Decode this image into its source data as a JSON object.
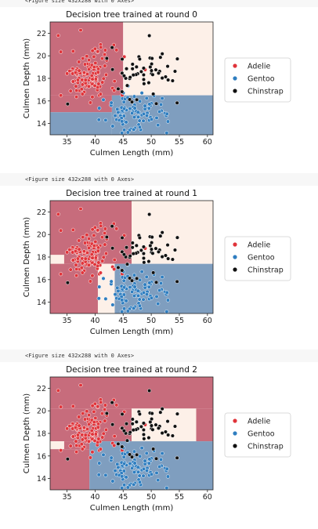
{
  "figure_caption": "<Figure size 432x288 with 0 Axes>",
  "colors": {
    "adelie": "#e0343a",
    "gentoo": "#2f7ec0",
    "chinstrap": "#111111",
    "region_adelie": "#c76c7c",
    "region_gentoo": "#7f9ebf",
    "region_chinstrap": "#fdf0e8"
  },
  "chart_data": [
    {
      "type": "scatter",
      "title": "Decision tree trained at round 0",
      "xlabel": "Culmen Length (mm)",
      "ylabel": "Culmen Depth (mm)",
      "xlim": [
        32,
        61
      ],
      "ylim": [
        13,
        23
      ],
      "xticks": [
        35,
        40,
        45,
        50,
        55,
        60
      ],
      "yticks": [
        14,
        16,
        18,
        20,
        22
      ],
      "legend": {
        "placement": "right",
        "entries": [
          "Adelie",
          "Gentoo",
          "Chinstrap"
        ]
      },
      "regions": [
        {
          "class": "adelie",
          "x": [
            32,
            45
          ],
          "y": [
            16.5,
            23
          ]
        },
        {
          "class": "adelie",
          "x": [
            32,
            43
          ],
          "y": [
            15.0,
            16.5
          ]
        },
        {
          "class": "chinstrap",
          "x": [
            45,
            61
          ],
          "y": [
            16.5,
            23
          ]
        },
        {
          "class": "gentoo",
          "x": [
            43,
            61
          ],
          "y": [
            13,
            16.5
          ]
        },
        {
          "class": "gentoo",
          "x": [
            32,
            43
          ],
          "y": [
            13,
            15.0
          ]
        }
      ]
    },
    {
      "type": "scatter",
      "title": "Decision tree trained at round 1",
      "xlabel": "Culmen Length (mm)",
      "ylabel": "Culmen Depth (mm)",
      "xlim": [
        32,
        61
      ],
      "ylim": [
        13,
        23
      ],
      "xticks": [
        35,
        40,
        45,
        50,
        55,
        60
      ],
      "yticks": [
        14,
        16,
        18,
        20,
        22
      ],
      "legend": {
        "placement": "right",
        "entries": [
          "Adelie",
          "Gentoo",
          "Chinstrap"
        ]
      },
      "regions": [
        {
          "class": "adelie",
          "x": [
            32,
            46.5
          ],
          "y": [
            17.4,
            23
          ]
        },
        {
          "class": "chinstrap",
          "x": [
            46.5,
            61
          ],
          "y": [
            17.4,
            23
          ]
        },
        {
          "class": "chinstrap",
          "x": [
            32,
            34.5
          ],
          "y": [
            17.4,
            18.2
          ]
        },
        {
          "class": "adelie",
          "x": [
            32,
            40.5
          ],
          "y": [
            13,
            17.4
          ]
        },
        {
          "class": "chinstrap",
          "x": [
            40.5,
            43.5
          ],
          "y": [
            13,
            17.4
          ]
        },
        {
          "class": "gentoo",
          "x": [
            43.5,
            61
          ],
          "y": [
            13,
            17.4
          ]
        }
      ]
    },
    {
      "type": "scatter",
      "title": "Decision tree trained at round 2",
      "xlabel": "Culmen Length (mm)",
      "ylabel": "Culmen Depth (mm)",
      "xlim": [
        32,
        61
      ],
      "ylim": [
        13,
        23
      ],
      "xticks": [
        35,
        40,
        45,
        50,
        55,
        60
      ],
      "yticks": [
        14,
        16,
        18,
        20,
        22
      ],
      "legend": {
        "placement": "right",
        "entries": [
          "Adelie",
          "Gentoo",
          "Chinstrap"
        ]
      },
      "regions": [
        {
          "class": "adelie",
          "x": [
            32,
            61
          ],
          "y": [
            20.2,
            23
          ]
        },
        {
          "class": "adelie",
          "x": [
            32,
            46.5
          ],
          "y": [
            17.3,
            20.2
          ]
        },
        {
          "class": "chinstrap",
          "x": [
            46.5,
            58
          ],
          "y": [
            17.3,
            20.2
          ]
        },
        {
          "class": "adelie",
          "x": [
            58,
            61
          ],
          "y": [
            17.3,
            20.2
          ]
        },
        {
          "class": "chinstrap",
          "x": [
            32,
            34.5
          ],
          "y": [
            16.6,
            17.3
          ]
        },
        {
          "class": "adelie",
          "x": [
            32,
            39
          ],
          "y": [
            13,
            16.6
          ]
        },
        {
          "class": "gentoo",
          "x": [
            39,
            61
          ],
          "y": [
            13,
            17.3
          ]
        },
        {
          "class": "adelie",
          "x": [
            34.5,
            39
          ],
          "y": [
            16.6,
            17.3
          ]
        }
      ]
    }
  ]
}
